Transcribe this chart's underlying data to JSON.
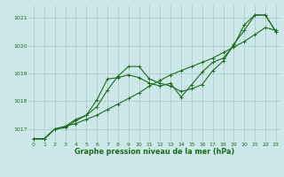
{
  "title": "Graphe pression niveau de la mer (hPa)",
  "background_color": "#cce8e8",
  "grid_color": "#b0cccc",
  "line_color": "#1a6e1a",
  "text_color": "#1a6e1a",
  "xlim": [
    -0.5,
    23.5
  ],
  "ylim": [
    1016.55,
    1021.45
  ],
  "yticks": [
    1017,
    1018,
    1019,
    1020,
    1021
  ],
  "xticks": [
    0,
    1,
    2,
    3,
    4,
    5,
    6,
    7,
    8,
    9,
    10,
    11,
    12,
    13,
    14,
    15,
    16,
    17,
    18,
    19,
    20,
    21,
    22,
    23
  ],
  "series1_x": [
    0,
    1,
    2,
    3,
    4,
    5,
    6,
    7,
    8,
    9,
    10,
    11,
    12,
    13,
    14,
    15,
    16,
    17,
    18,
    19,
    20,
    21,
    22,
    23
  ],
  "series1_y": [
    1016.65,
    1016.65,
    1017.0,
    1017.1,
    1017.2,
    1017.35,
    1017.5,
    1017.7,
    1017.9,
    1018.1,
    1018.3,
    1018.55,
    1018.75,
    1018.95,
    1019.1,
    1019.25,
    1019.4,
    1019.55,
    1019.75,
    1019.95,
    1020.15,
    1020.4,
    1020.65,
    1020.55
  ],
  "series2_x": [
    0,
    1,
    2,
    3,
    4,
    5,
    6,
    7,
    8,
    9,
    10,
    11,
    12,
    13,
    14,
    15,
    16,
    17,
    18,
    19,
    20,
    21,
    22,
    23
  ],
  "series2_y": [
    1016.65,
    1016.65,
    1017.0,
    1017.05,
    1017.3,
    1017.5,
    1018.05,
    1018.8,
    1018.85,
    1018.95,
    1018.85,
    1018.65,
    1018.55,
    1018.65,
    1018.15,
    1018.6,
    1019.05,
    1019.4,
    1019.55,
    1020.0,
    1020.75,
    1021.1,
    1021.1,
    1020.5
  ],
  "series3_x": [
    0,
    1,
    2,
    3,
    4,
    5,
    6,
    7,
    8,
    9,
    10,
    11,
    12,
    13,
    14,
    15,
    16,
    17,
    18,
    19,
    20,
    21,
    22,
    23
  ],
  "series3_y": [
    1016.65,
    1016.65,
    1017.0,
    1017.1,
    1017.35,
    1017.5,
    1017.8,
    1018.4,
    1018.9,
    1019.25,
    1019.25,
    1018.8,
    1018.65,
    1018.55,
    1018.35,
    1018.45,
    1018.6,
    1019.1,
    1019.45,
    1020.05,
    1020.55,
    1021.1,
    1021.1,
    1020.5
  ],
  "ylabel_fontsize": 4.8,
  "xlabel_fontsize": 5.8,
  "tick_labelsize": 4.5,
  "linewidth": 0.8,
  "markersize": 3.0
}
